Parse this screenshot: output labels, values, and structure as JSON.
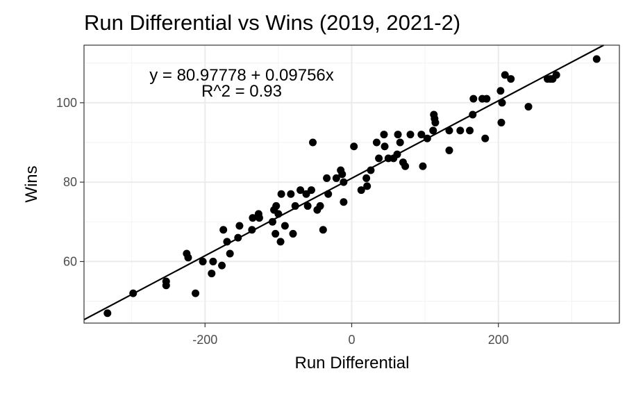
{
  "chart_data": {
    "type": "scatter",
    "title": "Run Differential vs Wins (2019, 2021-2)",
    "xlabel": "Run Differential",
    "ylabel": "Wins",
    "xlim": [
      -365,
      365
    ],
    "ylim": [
      44.5,
      114.5
    ],
    "x_ticks": [
      -200,
      0,
      200
    ],
    "y_ticks": [
      60,
      80,
      100
    ],
    "x_tick_labels": [
      "-200",
      "0",
      "200"
    ],
    "y_tick_labels": [
      "60",
      "80",
      "100"
    ],
    "grid": true,
    "regression": {
      "intercept": 80.97778,
      "slope": 0.09756,
      "equation_label": "y = 80.97778 + 0.09756x",
      "r2_label": "R^2 = 0.93"
    },
    "points": [
      [
        -333,
        47
      ],
      [
        -298,
        52
      ],
      [
        -253,
        55
      ],
      [
        -253,
        54
      ],
      [
        -225,
        62
      ],
      [
        -223,
        61
      ],
      [
        -213,
        52
      ],
      [
        -203,
        60
      ],
      [
        -191,
        57
      ],
      [
        -189,
        60
      ],
      [
        -177,
        59
      ],
      [
        -175,
        68
      ],
      [
        -170,
        65
      ],
      [
        -166,
        62
      ],
      [
        -155,
        66
      ],
      [
        -153,
        69
      ],
      [
        -136,
        68
      ],
      [
        -135,
        71
      ],
      [
        -127,
        72
      ],
      [
        -126,
        71
      ],
      [
        -108,
        70
      ],
      [
        -106,
        73
      ],
      [
        -103,
        74
      ],
      [
        -104,
        67
      ],
      [
        -100,
        72
      ],
      [
        -97,
        65
      ],
      [
        -96,
        77
      ],
      [
        -91,
        69
      ],
      [
        -83,
        77
      ],
      [
        -80,
        67
      ],
      [
        -77,
        74
      ],
      [
        -70,
        78
      ],
      [
        -60,
        74
      ],
      [
        -62,
        77
      ],
      [
        -55,
        78
      ],
      [
        -53,
        90
      ],
      [
        -47,
        73
      ],
      [
        -43,
        74
      ],
      [
        -39,
        68
      ],
      [
        -34,
        81
      ],
      [
        -32,
        77
      ],
      [
        -21,
        81
      ],
      [
        -15,
        83
      ],
      [
        -13,
        82
      ],
      [
        -11,
        80
      ],
      [
        -11,
        75
      ],
      [
        3,
        89
      ],
      [
        13,
        78
      ],
      [
        20,
        81
      ],
      [
        21,
        79
      ],
      [
        26,
        83
      ],
      [
        34,
        90
      ],
      [
        37,
        86
      ],
      [
        44,
        92
      ],
      [
        45,
        89
      ],
      [
        50,
        86
      ],
      [
        57,
        86
      ],
      [
        62,
        87
      ],
      [
        63,
        92
      ],
      [
        66,
        90
      ],
      [
        70,
        85
      ],
      [
        73,
        84
      ],
      [
        80,
        92
      ],
      [
        95,
        92
      ],
      [
        97,
        84
      ],
      [
        103,
        91
      ],
      [
        111,
        93
      ],
      [
        112,
        97
      ],
      [
        113,
        96
      ],
      [
        114,
        95
      ],
      [
        133,
        88
      ],
      [
        133,
        93
      ],
      [
        148,
        93
      ],
      [
        161,
        93
      ],
      [
        165,
        97
      ],
      [
        166,
        101
      ],
      [
        178,
        101
      ],
      [
        182,
        91
      ],
      [
        184,
        101
      ],
      [
        203,
        103
      ],
      [
        204,
        95
      ],
      [
        205,
        100
      ],
      [
        209,
        107
      ],
      [
        217,
        106
      ],
      [
        241,
        99
      ],
      [
        267,
        106
      ],
      [
        271,
        106
      ],
      [
        274,
        106
      ],
      [
        279,
        107
      ],
      [
        334,
        111
      ]
    ]
  }
}
